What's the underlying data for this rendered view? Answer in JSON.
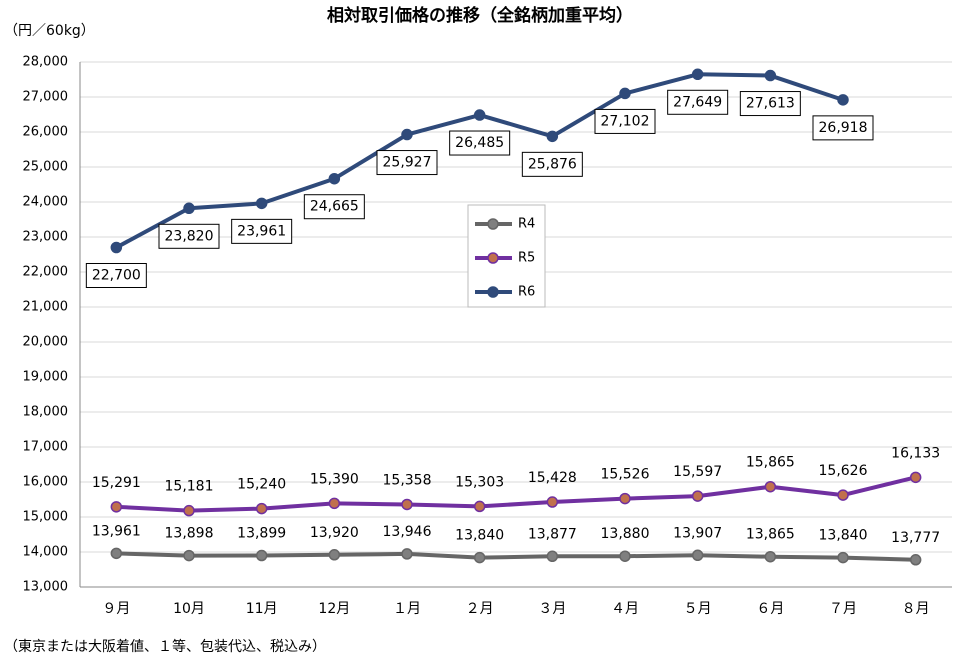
{
  "chart_data": {
    "type": "line",
    "title": "相対取引価格の推移（全銘柄加重平均）",
    "y_axis_label": "（円／60kg）",
    "footnote": "（東京または大阪着値、１等、包装代込、税込み）",
    "categories": [
      "９月",
      "10月",
      "11月",
      "12月",
      "１月",
      "２月",
      "３月",
      "４月",
      "５月",
      "６月",
      "７月",
      "８月"
    ],
    "series": [
      {
        "name": "R4",
        "color": "#666666",
        "marker_color": "#7f7f7f",
        "values": [
          13961,
          13898,
          13899,
          13920,
          13946,
          13840,
          13877,
          13880,
          13907,
          13865,
          13840,
          13777
        ],
        "value_labels": [
          "13,961",
          "13,898",
          "13,899",
          "13,920",
          "13,946",
          "13,840",
          "13,877",
          "13,880",
          "13,907",
          "13,865",
          "13,840",
          "13,777"
        ]
      },
      {
        "name": "R5",
        "color": "#7030a0",
        "marker_color": "#c0704d",
        "values": [
          15291,
          15181,
          15240,
          15390,
          15358,
          15303,
          15428,
          15526,
          15597,
          15865,
          15626,
          16133
        ],
        "value_labels": [
          "15,291",
          "15,181",
          "15,240",
          "15,390",
          "15,358",
          "15,303",
          "15,428",
          "15,526",
          "15,597",
          "15,865",
          "15,626",
          "16,133"
        ]
      },
      {
        "name": "R6",
        "color": "#2f4a7a",
        "marker_color": "#2f4a7a",
        "values": [
          22700,
          23820,
          23961,
          24665,
          25927,
          26485,
          25876,
          27102,
          27649,
          27613,
          26918,
          null
        ],
        "value_labels": [
          "22,700",
          "23,820",
          "23,961",
          "24,665",
          "25,927",
          "26,485",
          "25,876",
          "27,102",
          "27,649",
          "27,613",
          "26,918",
          null
        ]
      }
    ],
    "ylim": [
      13000,
      28000
    ],
    "yticks": [
      {
        "value": 13000,
        "label": "13,000"
      },
      {
        "value": 14000,
        "label": "14,000"
      },
      {
        "value": 15000,
        "label": "15,000"
      },
      {
        "value": 16000,
        "label": "16,000"
      },
      {
        "value": 17000,
        "label": "17,000"
      },
      {
        "value": 18000,
        "label": "18,000"
      },
      {
        "value": 19000,
        "label": "19,000"
      },
      {
        "value": 20000,
        "label": "20,000"
      },
      {
        "value": 21000,
        "label": "21,000"
      },
      {
        "value": 22000,
        "label": "22,000"
      },
      {
        "value": 23000,
        "label": "23,000"
      },
      {
        "value": 24000,
        "label": "24,000"
      },
      {
        "value": 25000,
        "label": "25,000"
      },
      {
        "value": 26000,
        "label": "26,000"
      },
      {
        "value": 27000,
        "label": "27,000"
      },
      {
        "value": 28000,
        "label": "28,000"
      }
    ],
    "grid": true
  }
}
